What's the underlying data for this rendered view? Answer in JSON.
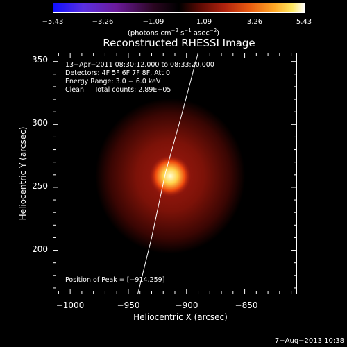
{
  "colorbar": {
    "ticks": [
      "−5.43",
      "−3.26",
      "−1.09",
      "1.09",
      "3.26",
      "5.43"
    ],
    "unit": "(photons cm",
    "unit_exp1": "−2",
    "unit_mid": " s",
    "unit_exp2": "−1",
    "unit_mid2": " asec",
    "unit_exp3": "−2",
    "unit_end": ")"
  },
  "title": "Reconstructed RHESSI Image",
  "info": {
    "time_range": "13−Apr−2011 08:30:12.000 to 08:33:20.000",
    "detectors": "Detectors: 4F 5F 6F 7F 8F, Att 0",
    "energy": "Energy Range: 3.0 − 6.0 keV",
    "clean": "Clean     Total counts: 2.89E+05",
    "peak": "Position of Peak = [−914,259]"
  },
  "chart_data": {
    "type": "heatmap",
    "title": "Reconstructed RHESSI Image",
    "xlabel": "Heliocentric X (arcsec)",
    "ylabel": "Heliocentric Y (arcsec)",
    "xlim": [
      -1015,
      -805
    ],
    "ylim": [
      165,
      357
    ],
    "x_ticks": [
      "−1000",
      "−950",
      "−900",
      "−850"
    ],
    "x_tick_values": [
      -1000,
      -950,
      -900,
      -850
    ],
    "y_ticks": [
      "200",
      "250",
      "300",
      "350"
    ],
    "y_tick_values": [
      200,
      250,
      300,
      350
    ],
    "peak": [
      -914,
      259
    ],
    "colorbar_range": [
      -5.43,
      5.43
    ],
    "limb_curve": [
      [
        -942,
        165
      ],
      [
        -930,
        210
      ],
      [
        -918,
        262
      ],
      [
        -905,
        305
      ],
      [
        -890,
        357
      ]
    ]
  },
  "footer": {
    "date": "7−Aug−2013 10:38"
  }
}
